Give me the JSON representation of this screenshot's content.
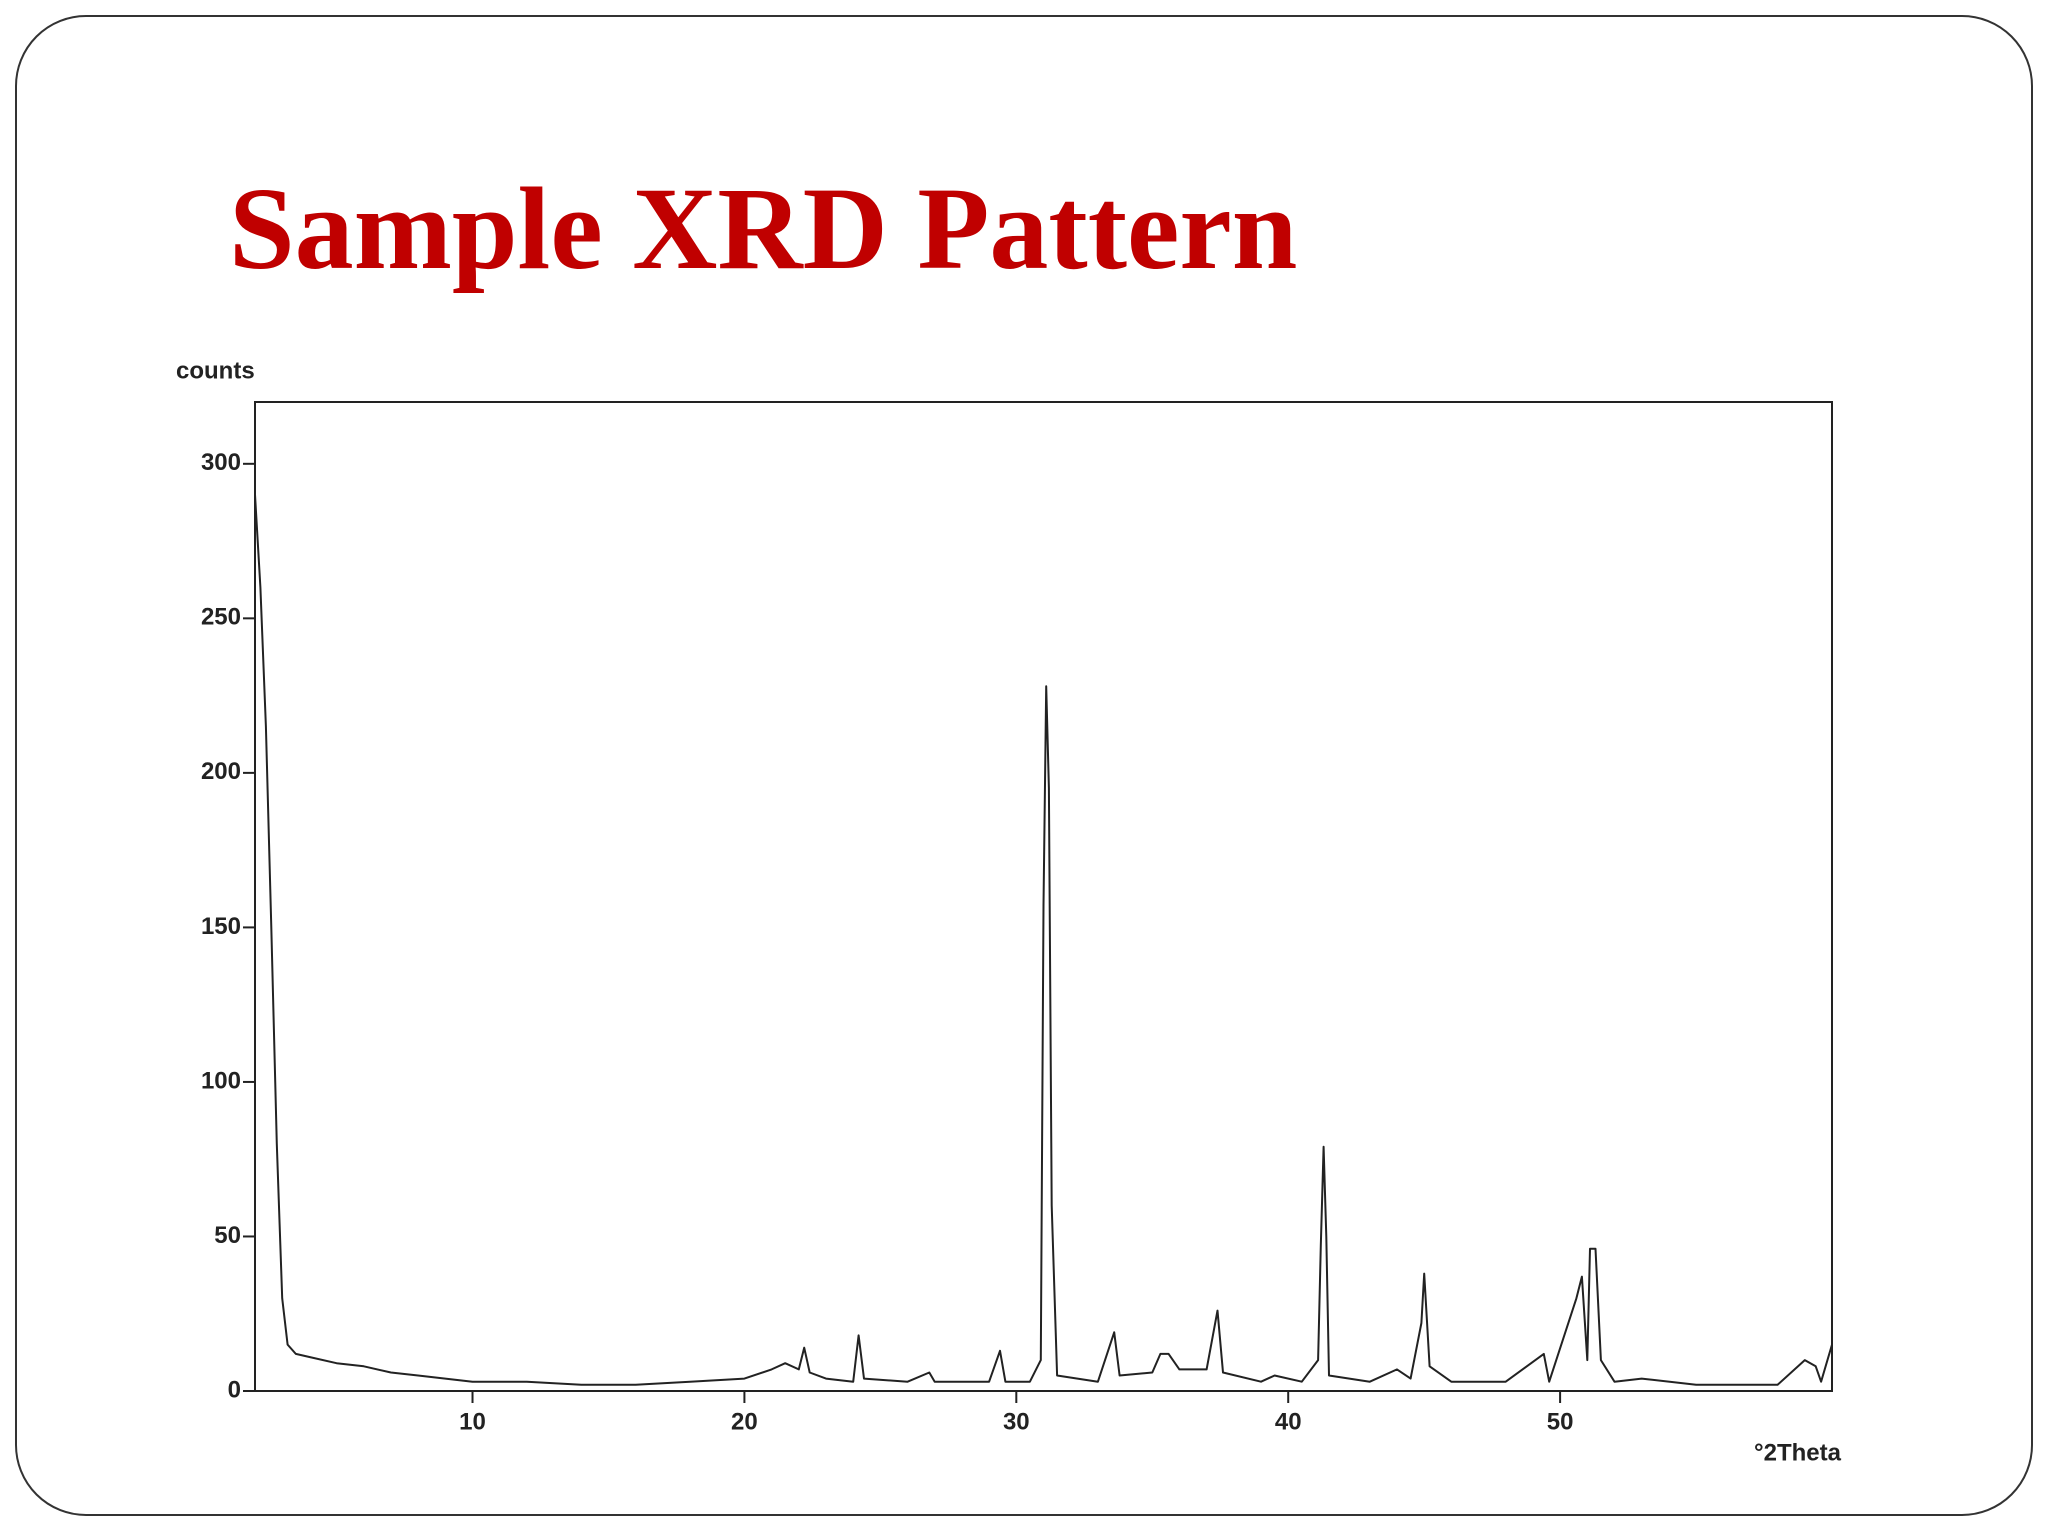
{
  "chart_data": {
    "type": "line",
    "title": "Sample XRD Pattern",
    "ylabel": "counts",
    "xlabel": "°2Theta",
    "x": [
      2.0,
      2.2,
      2.4,
      2.6,
      2.8,
      3.0,
      3.2,
      3.5,
      4,
      5,
      6,
      7,
      8,
      9,
      10,
      12,
      14,
      16,
      18,
      20,
      21,
      21.5,
      22,
      22.2,
      22.4,
      23,
      24,
      24.2,
      24.4,
      26,
      26.8,
      27,
      29,
      29.4,
      29.6,
      30.5,
      30.9,
      31.0,
      31.1,
      31.2,
      31.3,
      31.5,
      33,
      33.6,
      33.8,
      35,
      35.3,
      35.6,
      36,
      37,
      37.4,
      37.6,
      39,
      39.5,
      40.5,
      41.1,
      41.2,
      41.3,
      41.4,
      41.5,
      43,
      44,
      44.5,
      44.9,
      45.0,
      45.2,
      46,
      48,
      49.4,
      49.6,
      50.6,
      50.8,
      51.0,
      51.1,
      51.3,
      51.5,
      52,
      53,
      55,
      58,
      59.0,
      59.4,
      59.6,
      60
    ],
    "series": [
      {
        "color": "#222222",
        "values": [
          290,
          260,
          215,
          150,
          80,
          30,
          15,
          12,
          11,
          9,
          8,
          6,
          5,
          4,
          3,
          3,
          2,
          2,
          3,
          4,
          7,
          9,
          7,
          14,
          6,
          4,
          3,
          18,
          4,
          3,
          6,
          3,
          3,
          13,
          3,
          3,
          10,
          157,
          228,
          195,
          60,
          5,
          3,
          19,
          5,
          6,
          12,
          12,
          7,
          7,
          26,
          6,
          3,
          5,
          3,
          10,
          47,
          79,
          50,
          5,
          3,
          7,
          4,
          22,
          38,
          8,
          3,
          3,
          12,
          3,
          30,
          37,
          10,
          46,
          46,
          10,
          3,
          4,
          2,
          2,
          10,
          8,
          3,
          15
        ]
      }
    ],
    "xlim": [
      2,
      60
    ],
    "ylim": [
      0,
      320
    ],
    "xticks": [
      10,
      20,
      30,
      40,
      50
    ],
    "yticks": [
      0,
      50,
      100,
      150,
      200,
      250,
      300
    ]
  }
}
